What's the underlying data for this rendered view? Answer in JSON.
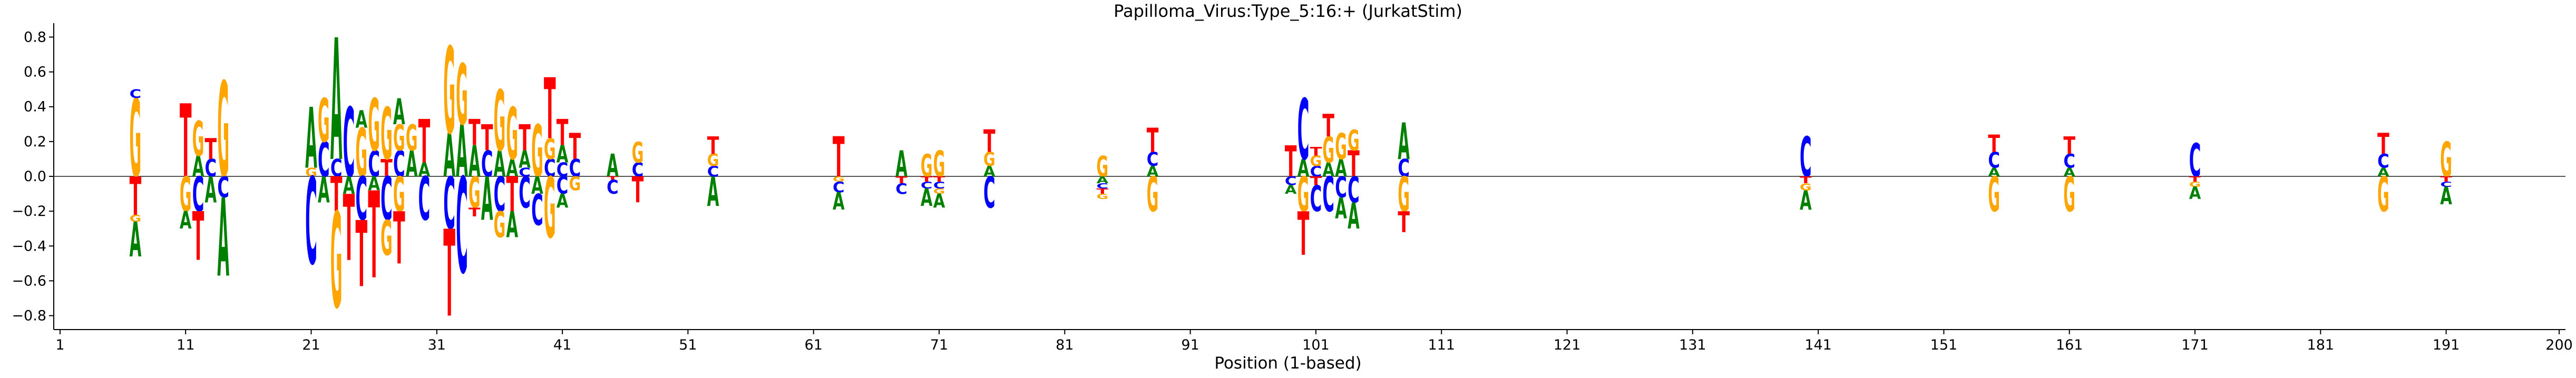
{
  "chart_data": {
    "type": "sequence-logo",
    "title": "Papilloma_Virus:Type_5:16:+  (JurkatStim)",
    "xlabel": "Position (1-based)",
    "ylabel": "",
    "xlim": [
      1,
      200
    ],
    "ylim": [
      -0.88,
      0.88
    ],
    "xticks": [
      1,
      11,
      21,
      31,
      41,
      51,
      61,
      71,
      81,
      91,
      101,
      111,
      121,
      131,
      141,
      151,
      161,
      171,
      181,
      191,
      200
    ],
    "yticks": [
      -0.8,
      -0.6,
      -0.4,
      -0.2,
      0.0,
      0.2,
      0.4,
      0.6,
      0.8
    ],
    "ytick_labels": [
      "−0.8",
      "−0.6",
      "−0.4",
      "−0.2",
      "0.0",
      "0.2",
      "0.4",
      "0.6",
      "0.8"
    ],
    "zero_line": true,
    "colors": {
      "A": "#008000",
      "C": "#0000ff",
      "G": "#ffa500",
      "T": "#ff0000"
    },
    "positions": [
      {
        "x": 7,
        "up": [
          [
            "G",
            0.45
          ],
          [
            "C",
            0.05
          ]
        ],
        "down": [
          [
            "T",
            0.22
          ],
          [
            "G",
            0.04
          ],
          [
            "A",
            0.2
          ]
        ]
      },
      {
        "x": 11,
        "up": [
          [
            "T",
            0.42
          ]
        ],
        "down": [
          [
            "G",
            0.2
          ],
          [
            "A",
            0.1
          ]
        ]
      },
      {
        "x": 12,
        "up": [
          [
            "A",
            0.12
          ],
          [
            "G",
            0.2
          ]
        ],
        "down": [
          [
            "C",
            0.2
          ],
          [
            "T",
            0.28
          ]
        ]
      },
      {
        "x": 13,
        "up": [
          [
            "C",
            0.1
          ],
          [
            "T",
            0.12
          ]
        ],
        "down": [
          [
            "A",
            0.15
          ]
        ]
      },
      {
        "x": 14,
        "up": [
          [
            "G",
            0.55
          ]
        ],
        "down": [
          [
            "C",
            0.12
          ],
          [
            "A",
            0.45
          ]
        ]
      },
      {
        "x": 21,
        "up": [
          [
            "G",
            0.05
          ],
          [
            "A",
            0.35
          ]
        ],
        "down": [
          [
            "C",
            0.5
          ]
        ]
      },
      {
        "x": 22,
        "up": [
          [
            "C",
            0.2
          ],
          [
            "G",
            0.25
          ]
        ],
        "down": [
          [
            "A",
            0.15
          ]
        ]
      },
      {
        "x": 23,
        "up": [
          [
            "C",
            0.1
          ],
          [
            "A",
            0.7
          ]
        ],
        "down": [
          [
            "T",
            0.2
          ],
          [
            "G",
            0.55
          ]
        ]
      },
      {
        "x": 24,
        "up": [
          [
            "C",
            0.4
          ]
        ],
        "down": [
          [
            "A",
            0.1
          ],
          [
            "T",
            0.38
          ]
        ]
      },
      {
        "x": 25,
        "up": [
          [
            "G",
            0.28
          ],
          [
            "A",
            0.1
          ]
        ],
        "down": [
          [
            "C",
            0.25
          ],
          [
            "T",
            0.38
          ]
        ]
      },
      {
        "x": 26,
        "up": [
          [
            "C",
            0.15
          ],
          [
            "G",
            0.3
          ]
        ],
        "down": [
          [
            "A",
            0.08
          ],
          [
            "T",
            0.5
          ]
        ]
      },
      {
        "x": 27,
        "up": [
          [
            "T",
            0.1
          ],
          [
            "G",
            0.3
          ]
        ],
        "down": [
          [
            "C",
            0.25
          ],
          [
            "G",
            0.2
          ]
        ]
      },
      {
        "x": 28,
        "up": [
          [
            "C",
            0.15
          ],
          [
            "G",
            0.15
          ],
          [
            "A",
            0.15
          ]
        ],
        "down": [
          [
            "G",
            0.2
          ],
          [
            "T",
            0.3
          ]
        ]
      },
      {
        "x": 29,
        "up": [
          [
            "A",
            0.15
          ],
          [
            "G",
            0.15
          ]
        ],
        "down": []
      },
      {
        "x": 30,
        "up": [
          [
            "A",
            0.08
          ],
          [
            "T",
            0.25
          ]
        ],
        "down": [
          [
            "C",
            0.25
          ]
        ]
      },
      {
        "x": 32,
        "up": [
          [
            "A",
            0.25
          ],
          [
            "G",
            0.5
          ]
        ],
        "down": [
          [
            "C",
            0.3
          ],
          [
            "T",
            0.5
          ]
        ]
      },
      {
        "x": 33,
        "up": [
          [
            "A",
            0.3
          ],
          [
            "G",
            0.35
          ]
        ],
        "down": [
          [
            "C",
            0.55
          ]
        ]
      },
      {
        "x": 34,
        "up": [
          [
            "A",
            0.18
          ],
          [
            "T",
            0.15
          ]
        ],
        "down": [
          [
            "G",
            0.18
          ],
          [
            "T",
            0.05
          ]
        ]
      },
      {
        "x": 35,
        "up": [
          [
            "C",
            0.15
          ],
          [
            "T",
            0.15
          ]
        ],
        "down": [
          [
            "A",
            0.25
          ]
        ]
      },
      {
        "x": 36,
        "up": [
          [
            "A",
            0.15
          ],
          [
            "G",
            0.35
          ]
        ],
        "down": [
          [
            "C",
            0.2
          ],
          [
            "G",
            0.15
          ]
        ]
      },
      {
        "x": 37,
        "up": [
          [
            "A",
            0.1
          ],
          [
            "G",
            0.3
          ]
        ],
        "down": [
          [
            "T",
            0.2
          ],
          [
            "A",
            0.15
          ]
        ]
      },
      {
        "x": 38,
        "up": [
          [
            "C",
            0.05
          ],
          [
            "A",
            0.1
          ],
          [
            "T",
            0.15
          ]
        ],
        "down": [
          [
            "C",
            0.18
          ]
        ]
      },
      {
        "x": 39,
        "up": [
          [
            "G",
            0.3
          ]
        ],
        "down": [
          [
            "A",
            0.1
          ],
          [
            "C",
            0.18
          ]
        ]
      },
      {
        "x": 40,
        "up": [
          [
            "C",
            0.1
          ],
          [
            "G",
            0.12
          ],
          [
            "T",
            0.35
          ]
        ],
        "down": [
          [
            "G",
            0.35
          ]
        ]
      },
      {
        "x": 41,
        "up": [
          [
            "C",
            0.08
          ],
          [
            "A",
            0.1
          ],
          [
            "T",
            0.15
          ]
        ],
        "down": [
          [
            "C",
            0.1
          ],
          [
            "A",
            0.08
          ]
        ]
      },
      {
        "x": 42,
        "up": [
          [
            "C",
            0.1
          ],
          [
            "T",
            0.15
          ]
        ],
        "down": [
          [
            "G",
            0.08
          ]
        ]
      },
      {
        "x": 45,
        "up": [
          [
            "A",
            0.13
          ]
        ],
        "down": [
          [
            "T",
            0.02
          ],
          [
            "C",
            0.08
          ]
        ]
      },
      {
        "x": 47,
        "up": [
          [
            "C",
            0.08
          ],
          [
            "G",
            0.12
          ]
        ],
        "down": [
          [
            "T",
            0.15
          ]
        ]
      },
      {
        "x": 53,
        "up": [
          [
            "C",
            0.06
          ],
          [
            "G",
            0.07
          ],
          [
            "T",
            0.1
          ]
        ],
        "down": [
          [
            "A",
            0.17
          ]
        ]
      },
      {
        "x": 63,
        "up": [
          [
            "T",
            0.23
          ]
        ],
        "down": [
          [
            "G",
            0.03
          ],
          [
            "C",
            0.06
          ],
          [
            "A",
            0.1
          ]
        ]
      },
      {
        "x": 68,
        "up": [
          [
            "A",
            0.15
          ]
        ],
        "down": [
          [
            "T",
            0.04
          ],
          [
            "C",
            0.06
          ]
        ]
      },
      {
        "x": 70,
        "up": [
          [
            "G",
            0.13
          ]
        ],
        "down": [
          [
            "T",
            0.03
          ],
          [
            "C",
            0.04
          ],
          [
            "A",
            0.1
          ]
        ]
      },
      {
        "x": 71,
        "up": [
          [
            "G",
            0.15
          ]
        ],
        "down": [
          [
            "T",
            0.03
          ],
          [
            "C",
            0.04
          ],
          [
            "G",
            0.03
          ],
          [
            "A",
            0.08
          ]
        ]
      },
      {
        "x": 75,
        "up": [
          [
            "A",
            0.06
          ],
          [
            "G",
            0.08
          ],
          [
            "T",
            0.13
          ]
        ],
        "down": [
          [
            "C",
            0.18
          ]
        ]
      },
      {
        "x": 84,
        "up": [
          [
            "G",
            0.12
          ]
        ],
        "down": [
          [
            "A",
            0.04
          ],
          [
            "C",
            0.03
          ],
          [
            "T",
            0.03
          ],
          [
            "G",
            0.03
          ]
        ]
      },
      {
        "x": 88,
        "up": [
          [
            "A",
            0.06
          ],
          [
            "C",
            0.08
          ],
          [
            "T",
            0.14
          ]
        ],
        "down": [
          [
            "G",
            0.2
          ]
        ]
      },
      {
        "x": 99,
        "up": [
          [
            "T",
            0.18
          ]
        ],
        "down": [
          [
            "C",
            0.05
          ],
          [
            "A",
            0.05
          ]
        ]
      },
      {
        "x": 100,
        "up": [
          [
            "A",
            0.1
          ],
          [
            "C",
            0.35
          ]
        ],
        "down": [
          [
            "G",
            0.2
          ],
          [
            "T",
            0.25
          ]
        ]
      },
      {
        "x": 101,
        "up": [
          [
            "C",
            0.06
          ],
          [
            "G",
            0.06
          ],
          [
            "T",
            0.05
          ]
        ],
        "down": [
          [
            "T",
            0.05
          ],
          [
            "C",
            0.15
          ]
        ]
      },
      {
        "x": 102,
        "up": [
          [
            "A",
            0.08
          ],
          [
            "G",
            0.15
          ],
          [
            "T",
            0.13
          ]
        ],
        "down": [
          [
            "C",
            0.2
          ]
        ]
      },
      {
        "x": 103,
        "up": [
          [
            "A",
            0.1
          ],
          [
            "G",
            0.15
          ]
        ],
        "down": [
          [
            "C",
            0.12
          ],
          [
            "A",
            0.12
          ]
        ]
      },
      {
        "x": 104,
        "up": [
          [
            "T",
            0.15
          ],
          [
            "G",
            0.12
          ]
        ],
        "down": [
          [
            "C",
            0.15
          ],
          [
            "A",
            0.15
          ]
        ]
      },
      {
        "x": 108,
        "up": [
          [
            "C",
            0.1
          ],
          [
            "A",
            0.21
          ]
        ],
        "down": [
          [
            "G",
            0.2
          ],
          [
            "T",
            0.12
          ]
        ]
      },
      {
        "x": 140,
        "up": [
          [
            "C",
            0.23
          ]
        ],
        "down": [
          [
            "T",
            0.04
          ],
          [
            "G",
            0.04
          ],
          [
            "A",
            0.11
          ]
        ]
      },
      {
        "x": 155,
        "up": [
          [
            "A",
            0.05
          ],
          [
            "C",
            0.09
          ],
          [
            "T",
            0.1
          ]
        ],
        "down": [
          [
            "G",
            0.2
          ]
        ]
      },
      {
        "x": 161,
        "up": [
          [
            "A",
            0.05
          ],
          [
            "C",
            0.08
          ],
          [
            "T",
            0.1
          ]
        ],
        "down": [
          [
            "G",
            0.2
          ]
        ]
      },
      {
        "x": 171,
        "up": [
          [
            "C",
            0.19
          ]
        ],
        "down": [
          [
            "T",
            0.03
          ],
          [
            "G",
            0.03
          ],
          [
            "A",
            0.07
          ]
        ]
      },
      {
        "x": 186,
        "up": [
          [
            "A",
            0.05
          ],
          [
            "C",
            0.08
          ],
          [
            "T",
            0.12
          ]
        ],
        "down": [
          [
            "G",
            0.2
          ]
        ]
      },
      {
        "x": 191,
        "up": [
          [
            "G",
            0.2
          ]
        ],
        "down": [
          [
            "T",
            0.03
          ],
          [
            "C",
            0.03
          ],
          [
            "A",
            0.1
          ]
        ]
      }
    ]
  }
}
